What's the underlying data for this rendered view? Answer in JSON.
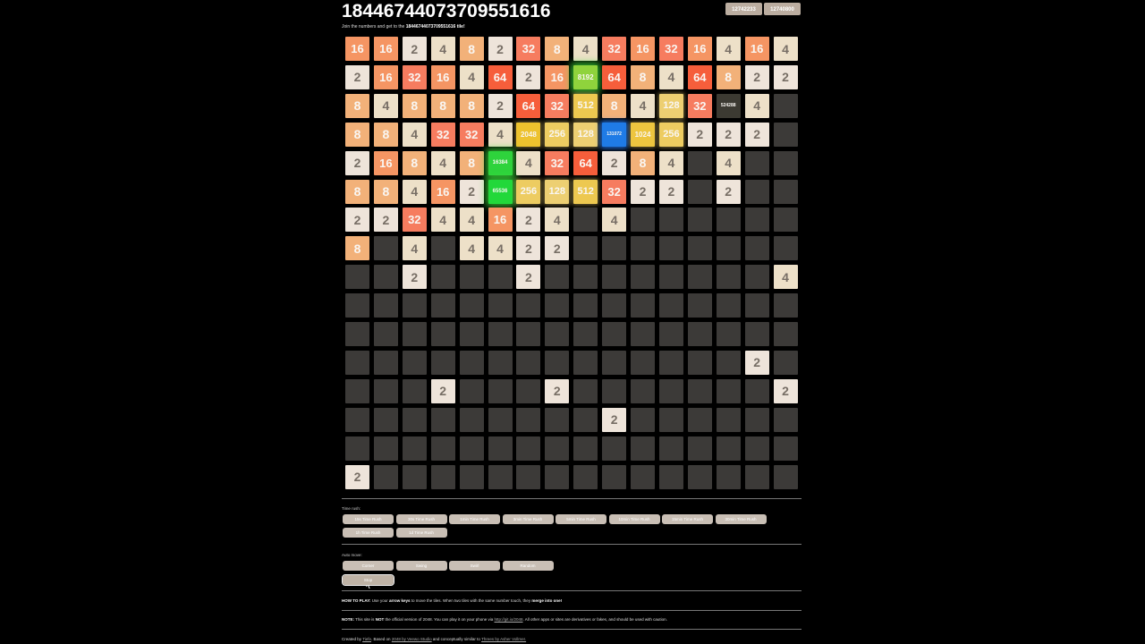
{
  "header": {
    "title": "18446744073709551616",
    "subtitle_prefix": "Join the numbers and get to the",
    "subtitle_target": "18446744073709551616 tile!",
    "score": "12742233",
    "best": "12740800"
  },
  "board": {
    "size": 16,
    "rows": [
      [
        16,
        16,
        2,
        4,
        8,
        2,
        32,
        8,
        4,
        32,
        16,
        32,
        16,
        4,
        16,
        4
      ],
      [
        2,
        16,
        32,
        16,
        4,
        64,
        2,
        16,
        8192,
        64,
        8,
        4,
        64,
        8,
        2,
        2
      ],
      [
        8,
        4,
        8,
        8,
        8,
        2,
        64,
        32,
        512,
        8,
        4,
        128,
        32,
        524288,
        4,
        0
      ],
      [
        8,
        8,
        4,
        32,
        32,
        4,
        2048,
        256,
        128,
        131072,
        1024,
        256,
        2,
        2,
        2,
        0
      ],
      [
        2,
        16,
        8,
        4,
        8,
        16384,
        4,
        32,
        64,
        2,
        8,
        4,
        0,
        4,
        0,
        0
      ],
      [
        8,
        8,
        4,
        16,
        2,
        65536,
        256,
        128,
        512,
        32,
        2,
        2,
        0,
        2,
        0,
        0
      ],
      [
        2,
        2,
        32,
        4,
        4,
        16,
        2,
        4,
        0,
        4,
        0,
        0,
        0,
        0,
        0,
        0
      ],
      [
        8,
        0,
        4,
        0,
        4,
        4,
        2,
        2,
        0,
        0,
        0,
        0,
        0,
        0,
        0,
        0
      ],
      [
        0,
        0,
        2,
        0,
        0,
        0,
        2,
        0,
        0,
        0,
        0,
        0,
        0,
        0,
        0,
        4
      ],
      [
        0,
        0,
        0,
        0,
        0,
        0,
        0,
        0,
        0,
        0,
        0,
        0,
        0,
        0,
        0,
        0
      ],
      [
        0,
        0,
        0,
        0,
        0,
        0,
        0,
        0,
        0,
        0,
        0,
        0,
        0,
        0,
        0,
        0
      ],
      [
        0,
        0,
        0,
        0,
        0,
        0,
        0,
        0,
        0,
        0,
        0,
        0,
        0,
        0,
        2,
        0
      ],
      [
        0,
        0,
        0,
        2,
        0,
        0,
        0,
        2,
        0,
        0,
        0,
        0,
        0,
        0,
        0,
        2
      ],
      [
        0,
        0,
        0,
        0,
        0,
        0,
        0,
        0,
        0,
        2,
        0,
        0,
        0,
        0,
        0,
        0
      ],
      [
        0,
        0,
        0,
        0,
        0,
        0,
        0,
        0,
        0,
        0,
        0,
        0,
        0,
        0,
        0,
        0
      ],
      [
        2,
        0,
        0,
        0,
        0,
        0,
        0,
        0,
        0,
        0,
        0,
        0,
        0,
        0,
        0,
        0
      ]
    ]
  },
  "colors": {
    "empty": "#3c3a38",
    "2": "#eee4da",
    "4": "#ede0c8",
    "8": "#f2b179",
    "16": "#f59563",
    "32": "#f67c5f",
    "64": "#f65e3b",
    "128": "#edcf72",
    "256": "#edcc61",
    "512": "#edc850",
    "1024": "#edc53f",
    "2048": "#edc22e",
    "8192": "#8fd33c",
    "16384": "#2ed33c",
    "65536": "#22d83a",
    "131072": "#1f7be6",
    "524288": "#3c3a32"
  },
  "time_rush": {
    "label": "Time rush:",
    "buttons": [
      "15s Time Rush",
      "30s Time Rush",
      "1min Time Rush",
      "3min Time Rush",
      "5min Time Rush",
      "10min Time Rush",
      "15min Time Rush",
      "30min Time Rush",
      "1h Time Rush",
      "1d Time Rush"
    ]
  },
  "auto_move": {
    "label": "Auto move:",
    "buttons": [
      "Corner",
      "Swing",
      "Swirl",
      "Random",
      "Stop"
    ]
  },
  "how_to": {
    "prefix": "HOW TO PLAY:",
    "t1": "Use your",
    "keys": "arrow keys",
    "t2": "to move the tiles. When two tiles with the same number touch, they",
    "merge": "merge into one!"
  },
  "note": {
    "prefix": "NOTE:",
    "t1": "This site is",
    "not": "NOT",
    "t2": "the official version of 2048. You can play it on your phone via",
    "link": "http://git.io/2048",
    "t3": ". All other apps or sites are derivatives or fakes, and should be used with caution."
  },
  "credits": {
    "t1": "Created by",
    "author": "Tiefe",
    "t2": ". Based on",
    "orig": "2048 by Veewo Studio",
    "t3": "and conceptually similar to",
    "threes": "Threes by Asher Vollmer."
  }
}
